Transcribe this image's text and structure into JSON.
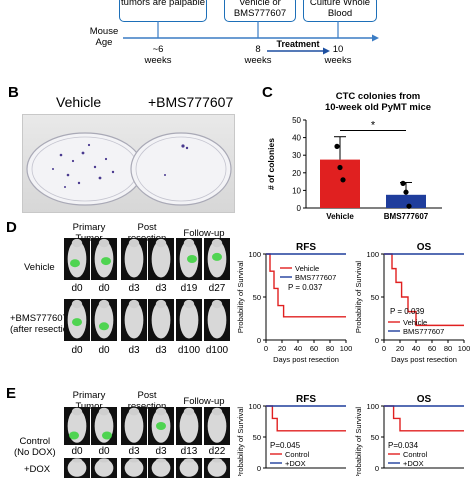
{
  "panelA": {
    "boxes": [
      {
        "text": "tumors are palpable"
      },
      {
        "text": "Vehicle or BMS777607"
      },
      {
        "text": "Culture Whole Blood"
      }
    ],
    "mouse_age_label": "Mouse Age",
    "timepoints": [
      {
        "n": "~6",
        "unit": "weeks"
      },
      {
        "n": "8",
        "unit": "weeks"
      },
      {
        "n": "10",
        "unit": "weeks"
      }
    ],
    "treatment_label": "Treatment",
    "colors": {
      "arrow": "#3a7cc4",
      "box_border": "#1d6fb8"
    }
  },
  "panelB": {
    "letter": "B",
    "label_vehicle": "Vehicle",
    "label_drug": "+BMS777607"
  },
  "panelC": {
    "letter": "C",
    "chart_data": {
      "type": "bar",
      "title": "CTC colonies from 10-week old PyMT mice",
      "ylabel": "# of colonies",
      "ylim": [
        0,
        50
      ],
      "yticks": [
        0,
        10,
        20,
        30,
        40,
        50
      ],
      "categories": [
        "Vehicle",
        "BMS777607"
      ],
      "values": [
        27.5,
        7.5
      ],
      "errors": [
        13,
        7
      ],
      "points": [
        [
          35,
          23,
          16
        ],
        [
          14,
          9,
          1
        ]
      ],
      "colors": [
        "#e02020",
        "#1f3d9c"
      ],
      "significance": "*"
    }
  },
  "panelD": {
    "letter": "D",
    "headers": [
      "Primary Tumor",
      "Post resection",
      "Follow-up"
    ],
    "row_labels": [
      {
        "line1": "Vehicle",
        "line2": ""
      },
      {
        "line1": "+BMS777607",
        "line2": "(after resection)"
      }
    ],
    "day_labels": [
      [
        "d0",
        "d0",
        "d3",
        "d3",
        "d19",
        "d27"
      ],
      [
        "d0",
        "d0",
        "d3",
        "d3",
        "d100",
        "d100"
      ]
    ],
    "rfs": {
      "chart_data": {
        "type": "line",
        "title": "RFS",
        "xlabel": "Days post resection",
        "ylabel": "Probability of Survival",
        "xlim": [
          0,
          100
        ],
        "ylim": [
          0,
          100
        ],
        "xticks": [
          0,
          20,
          40,
          60,
          80,
          100
        ],
        "yticks": [
          0,
          50,
          100
        ],
        "series": [
          {
            "name": "Vehicle",
            "color": "#e02020",
            "steps": [
              [
                0,
                100
              ],
              [
                5,
                100
              ],
              [
                5,
                80
              ],
              [
                10,
                80
              ],
              [
                10,
                60
              ],
              [
                15,
                60
              ],
              [
                15,
                40
              ],
              [
                22,
                40
              ],
              [
                22,
                27
              ],
              [
                100,
                27
              ]
            ]
          },
          {
            "name": "BMS777607",
            "color": "#1f3d9c",
            "steps": [
              [
                0,
                100
              ],
              [
                100,
                100
              ]
            ]
          }
        ],
        "annotation": "P = 0.037"
      }
    },
    "os": {
      "chart_data": {
        "type": "line",
        "title": "OS",
        "xlabel": "Days post resection",
        "ylabel": "Probability of Survival",
        "xlim": [
          0,
          100
        ],
        "ylim": [
          0,
          100
        ],
        "xticks": [
          0,
          20,
          40,
          60,
          80,
          100
        ],
        "yticks": [
          0,
          50,
          100
        ],
        "series": [
          {
            "name": "Vehicle",
            "color": "#e02020",
            "steps": [
              [
                0,
                100
              ],
              [
                10,
                100
              ],
              [
                10,
                83
              ],
              [
                15,
                83
              ],
              [
                15,
                67
              ],
              [
                22,
                67
              ],
              [
                22,
                50
              ],
              [
                30,
                50
              ],
              [
                30,
                33
              ],
              [
                40,
                33
              ],
              [
                40,
                17
              ],
              [
                100,
                17
              ]
            ]
          },
          {
            "name": "BMS777607",
            "color": "#1f3d9c",
            "steps": [
              [
                0,
                100
              ],
              [
                100,
                100
              ]
            ]
          }
        ],
        "annotation": "P = 0.039"
      }
    }
  },
  "panelE": {
    "letter": "E",
    "headers": [
      "Primary Tumor",
      "Post resection",
      "Follow-up"
    ],
    "row_labels": [
      {
        "line1": "Control",
        "line2": "(No DOX)"
      },
      {
        "line1": "+DOX",
        "line2": ""
      }
    ],
    "day_labels": [
      [
        "d0",
        "d0",
        "d3",
        "d3",
        "d13",
        "d22"
      ]
    ],
    "rfs": {
      "chart_data": {
        "type": "line",
        "title": "RFS",
        "ylabel": "Probability of Survival",
        "ylim": [
          0,
          100
        ],
        "yticks": [
          0,
          50,
          100
        ],
        "series": [
          {
            "name": "Control",
            "color": "#e02020",
            "steps": [
              [
                0,
                100
              ],
              [
                8,
                100
              ],
              [
                8,
                80
              ],
              [
                14,
                80
              ],
              [
                14,
                60
              ],
              [
                100,
                60
              ]
            ]
          },
          {
            "name": "+DOX",
            "color": "#1f3d9c",
            "steps": [
              [
                0,
                100
              ],
              [
                100,
                100
              ]
            ]
          }
        ],
        "annotation": "P=0.045"
      }
    },
    "os": {
      "chart_data": {
        "type": "line",
        "title": "OS",
        "ylabel": "Probability of Survival",
        "ylim": [
          0,
          100
        ],
        "yticks": [
          0,
          50,
          100
        ],
        "series": [
          {
            "name": "Control",
            "color": "#e02020",
            "steps": [
              [
                0,
                100
              ],
              [
                12,
                100
              ],
              [
                12,
                80
              ],
              [
                20,
                80
              ],
              [
                20,
                60
              ],
              [
                100,
                60
              ]
            ]
          },
          {
            "name": "+DOX",
            "color": "#1f3d9c",
            "steps": [
              [
                0,
                100
              ],
              [
                100,
                100
              ]
            ]
          }
        ],
        "annotation": "P=0.034"
      }
    }
  }
}
